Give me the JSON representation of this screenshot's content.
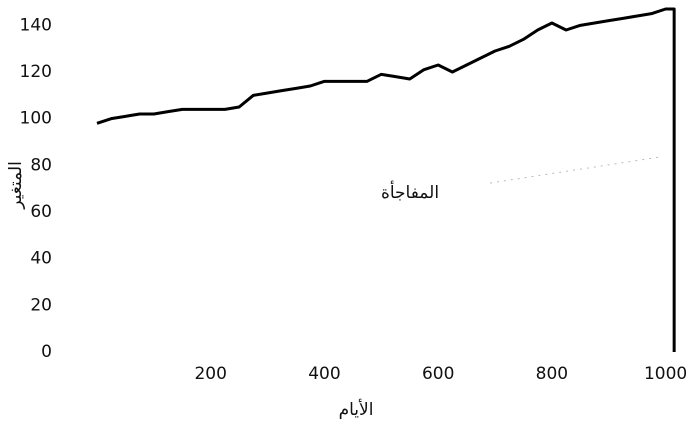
{
  "chart_data": {
    "type": "line",
    "x_label": "الأيام",
    "y_label": "المتغير",
    "annotation": "المفاجأة",
    "series": [
      {
        "name": "المتغير",
        "color": "#000000",
        "x": [
          0,
          25,
          50,
          75,
          100,
          125,
          150,
          175,
          200,
          225,
          250,
          275,
          300,
          325,
          350,
          375,
          400,
          425,
          450,
          475,
          500,
          525,
          550,
          575,
          600,
          625,
          650,
          675,
          700,
          725,
          750,
          775,
          800,
          825,
          850,
          875,
          900,
          925,
          950,
          975,
          1000,
          1015,
          1015
        ],
        "values": [
          98,
          100,
          101,
          102,
          102,
          103,
          104,
          104,
          104,
          104,
          105,
          110,
          111,
          112,
          113,
          114,
          116,
          116,
          116,
          116,
          119,
          118,
          117,
          121,
          123,
          120,
          123,
          126,
          129,
          131,
          134,
          138,
          141,
          138,
          140,
          141,
          142,
          143,
          144,
          145,
          147,
          147,
          0
        ]
      }
    ],
    "xlim": [
      0,
      1020
    ],
    "xticks": [
      200,
      400,
      600,
      800,
      1000
    ],
    "ylim": [
      0,
      150
    ],
    "yticks": [
      0,
      20,
      40,
      60,
      80,
      100,
      120,
      140
    ],
    "grid": false
  }
}
